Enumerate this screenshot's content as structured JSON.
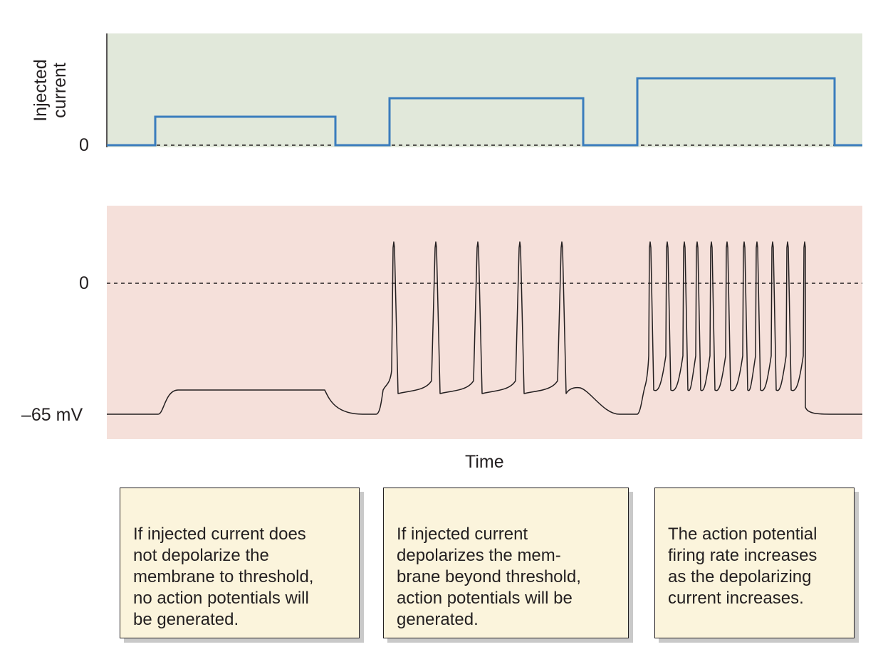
{
  "current_panel": {
    "y_label": "Injected\ncurrent",
    "zero_tick": "0",
    "background": "#e1e8da",
    "trace_color": "#3a7dbd",
    "steps": [
      0,
      1,
      0,
      2,
      0,
      3,
      0
    ]
  },
  "voltage_panel": {
    "zero_tick": "0",
    "rest_tick": "–65 mV",
    "background": "#f5e0da",
    "trace_color": "#231f20",
    "resting_potential_mV": -65,
    "spike_counts": [
      0,
      5,
      10
    ]
  },
  "x_label": "Time",
  "captions": [
    "If injected current does\nnot depolarize the\nmembrane to threshold,\nno action potentials will\nbe generated.",
    "If injected current\ndepolarizes the mem-\nbrane beyond threshold,\naction potentials will be\ngenerated.",
    "The action potential\nfiring rate increases\nas the depolarizing\ncurrent increases."
  ]
}
